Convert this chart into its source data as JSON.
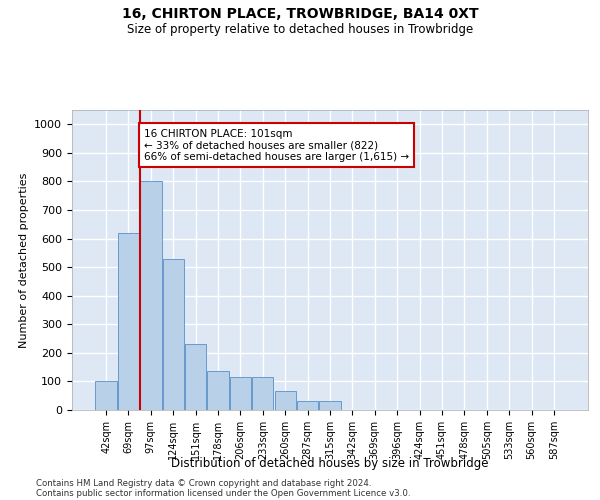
{
  "title1": "16, CHIRTON PLACE, TROWBRIDGE, BA14 0XT",
  "title2": "Size of property relative to detached houses in Trowbridge",
  "xlabel": "Distribution of detached houses by size in Trowbridge",
  "ylabel": "Number of detached properties",
  "categories": [
    "42sqm",
    "69sqm",
    "97sqm",
    "124sqm",
    "151sqm",
    "178sqm",
    "206sqm",
    "233sqm",
    "260sqm",
    "287sqm",
    "315sqm",
    "342sqm",
    "369sqm",
    "396sqm",
    "424sqm",
    "451sqm",
    "478sqm",
    "505sqm",
    "533sqm",
    "560sqm",
    "587sqm"
  ],
  "values": [
    100,
    620,
    800,
    530,
    230,
    135,
    115,
    115,
    65,
    30,
    30,
    0,
    0,
    0,
    0,
    0,
    0,
    0,
    0,
    0,
    0
  ],
  "bar_color": "#b8d0e8",
  "bar_edge_color": "#6699cc",
  "background_color": "#dde8f4",
  "grid_color": "#ffffff",
  "red_line_index": 2,
  "annotation_text": "16 CHIRTON PLACE: 101sqm\n← 33% of detached houses are smaller (822)\n66% of semi-detached houses are larger (1,615) →",
  "annotation_box_color": "#ffffff",
  "annotation_box_edge": "#cc0000",
  "red_line_color": "#cc0000",
  "ylim": [
    0,
    1050
  ],
  "yticks": [
    0,
    100,
    200,
    300,
    400,
    500,
    600,
    700,
    800,
    900,
    1000
  ],
  "footer1": "Contains HM Land Registry data © Crown copyright and database right 2024.",
  "footer2": "Contains public sector information licensed under the Open Government Licence v3.0."
}
